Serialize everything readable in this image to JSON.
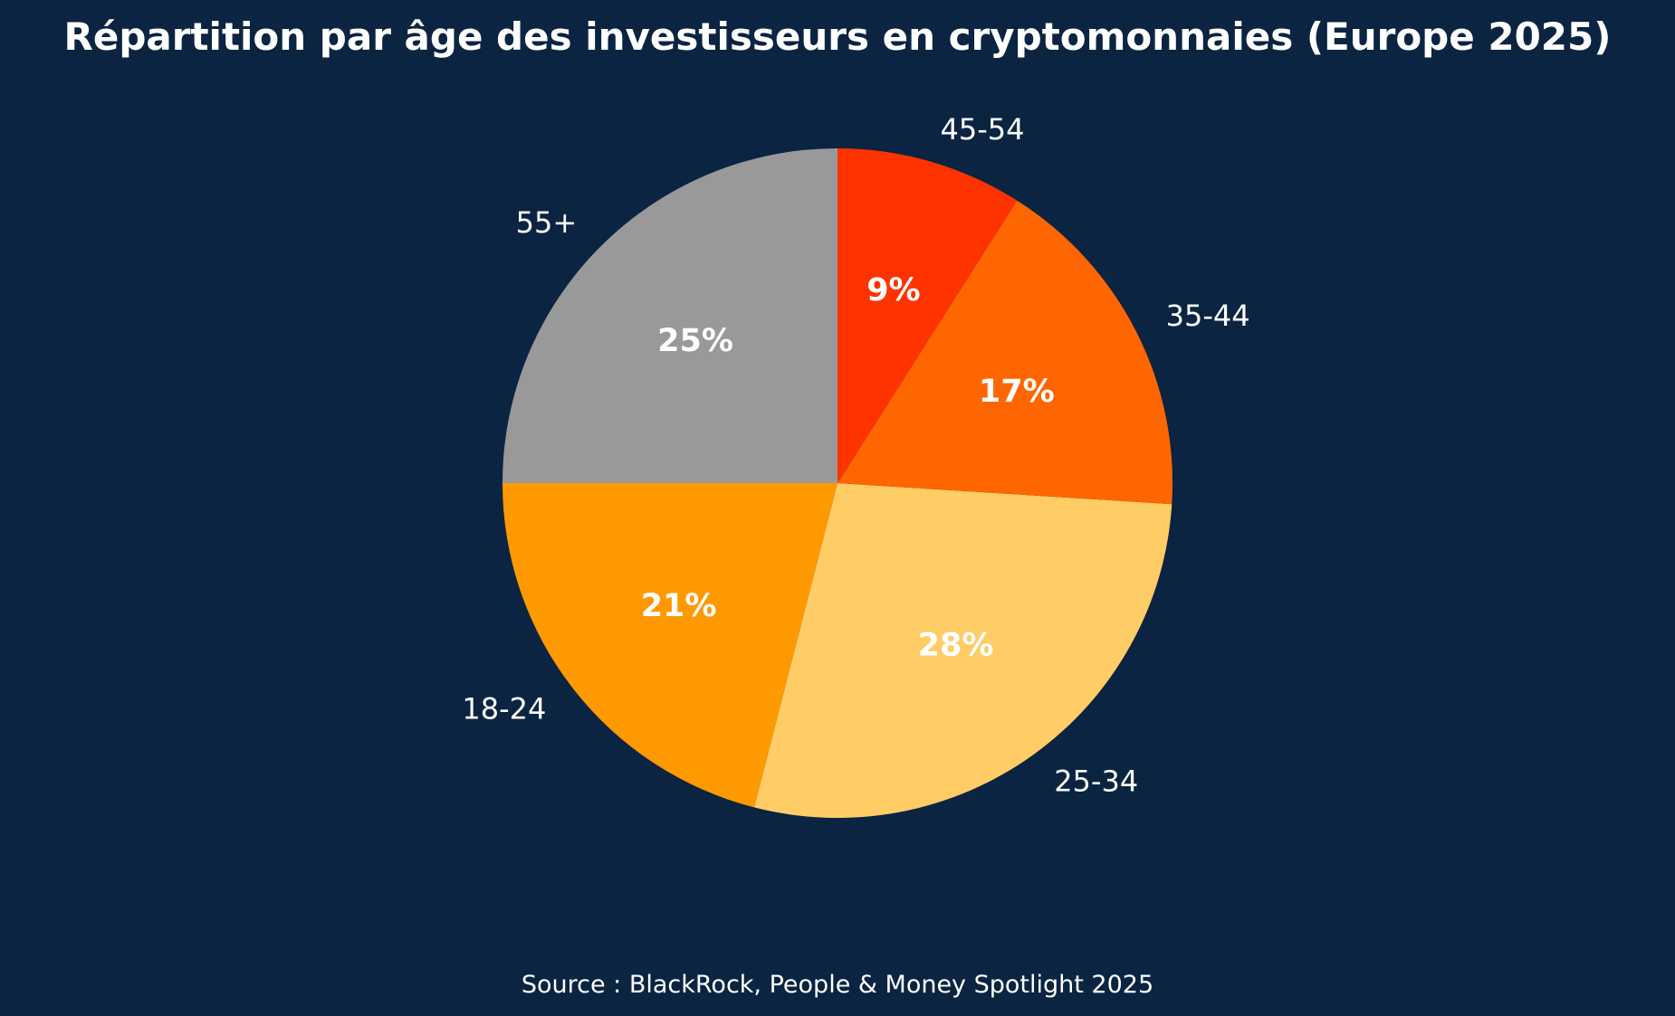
{
  "chart_data": {
    "type": "pie",
    "title": "Répartition par âge des investisseurs en cryptomonnaies (Europe 2025)",
    "source": "Source : BlackRock, People & Money Spotlight 2025",
    "categories": [
      "55+",
      "18-24",
      "25-34",
      "35-44",
      "45-54"
    ],
    "values": [
      25,
      21,
      28,
      17,
      9
    ],
    "value_labels": [
      "25%",
      "21%",
      "28%",
      "17%",
      "9%"
    ],
    "colors": [
      "#999999",
      "#ff9900",
      "#ffcc66",
      "#ff6600",
      "#ff3300"
    ],
    "start_angle_deg": 90,
    "direction": "counterclockwise",
    "legend": "none"
  }
}
